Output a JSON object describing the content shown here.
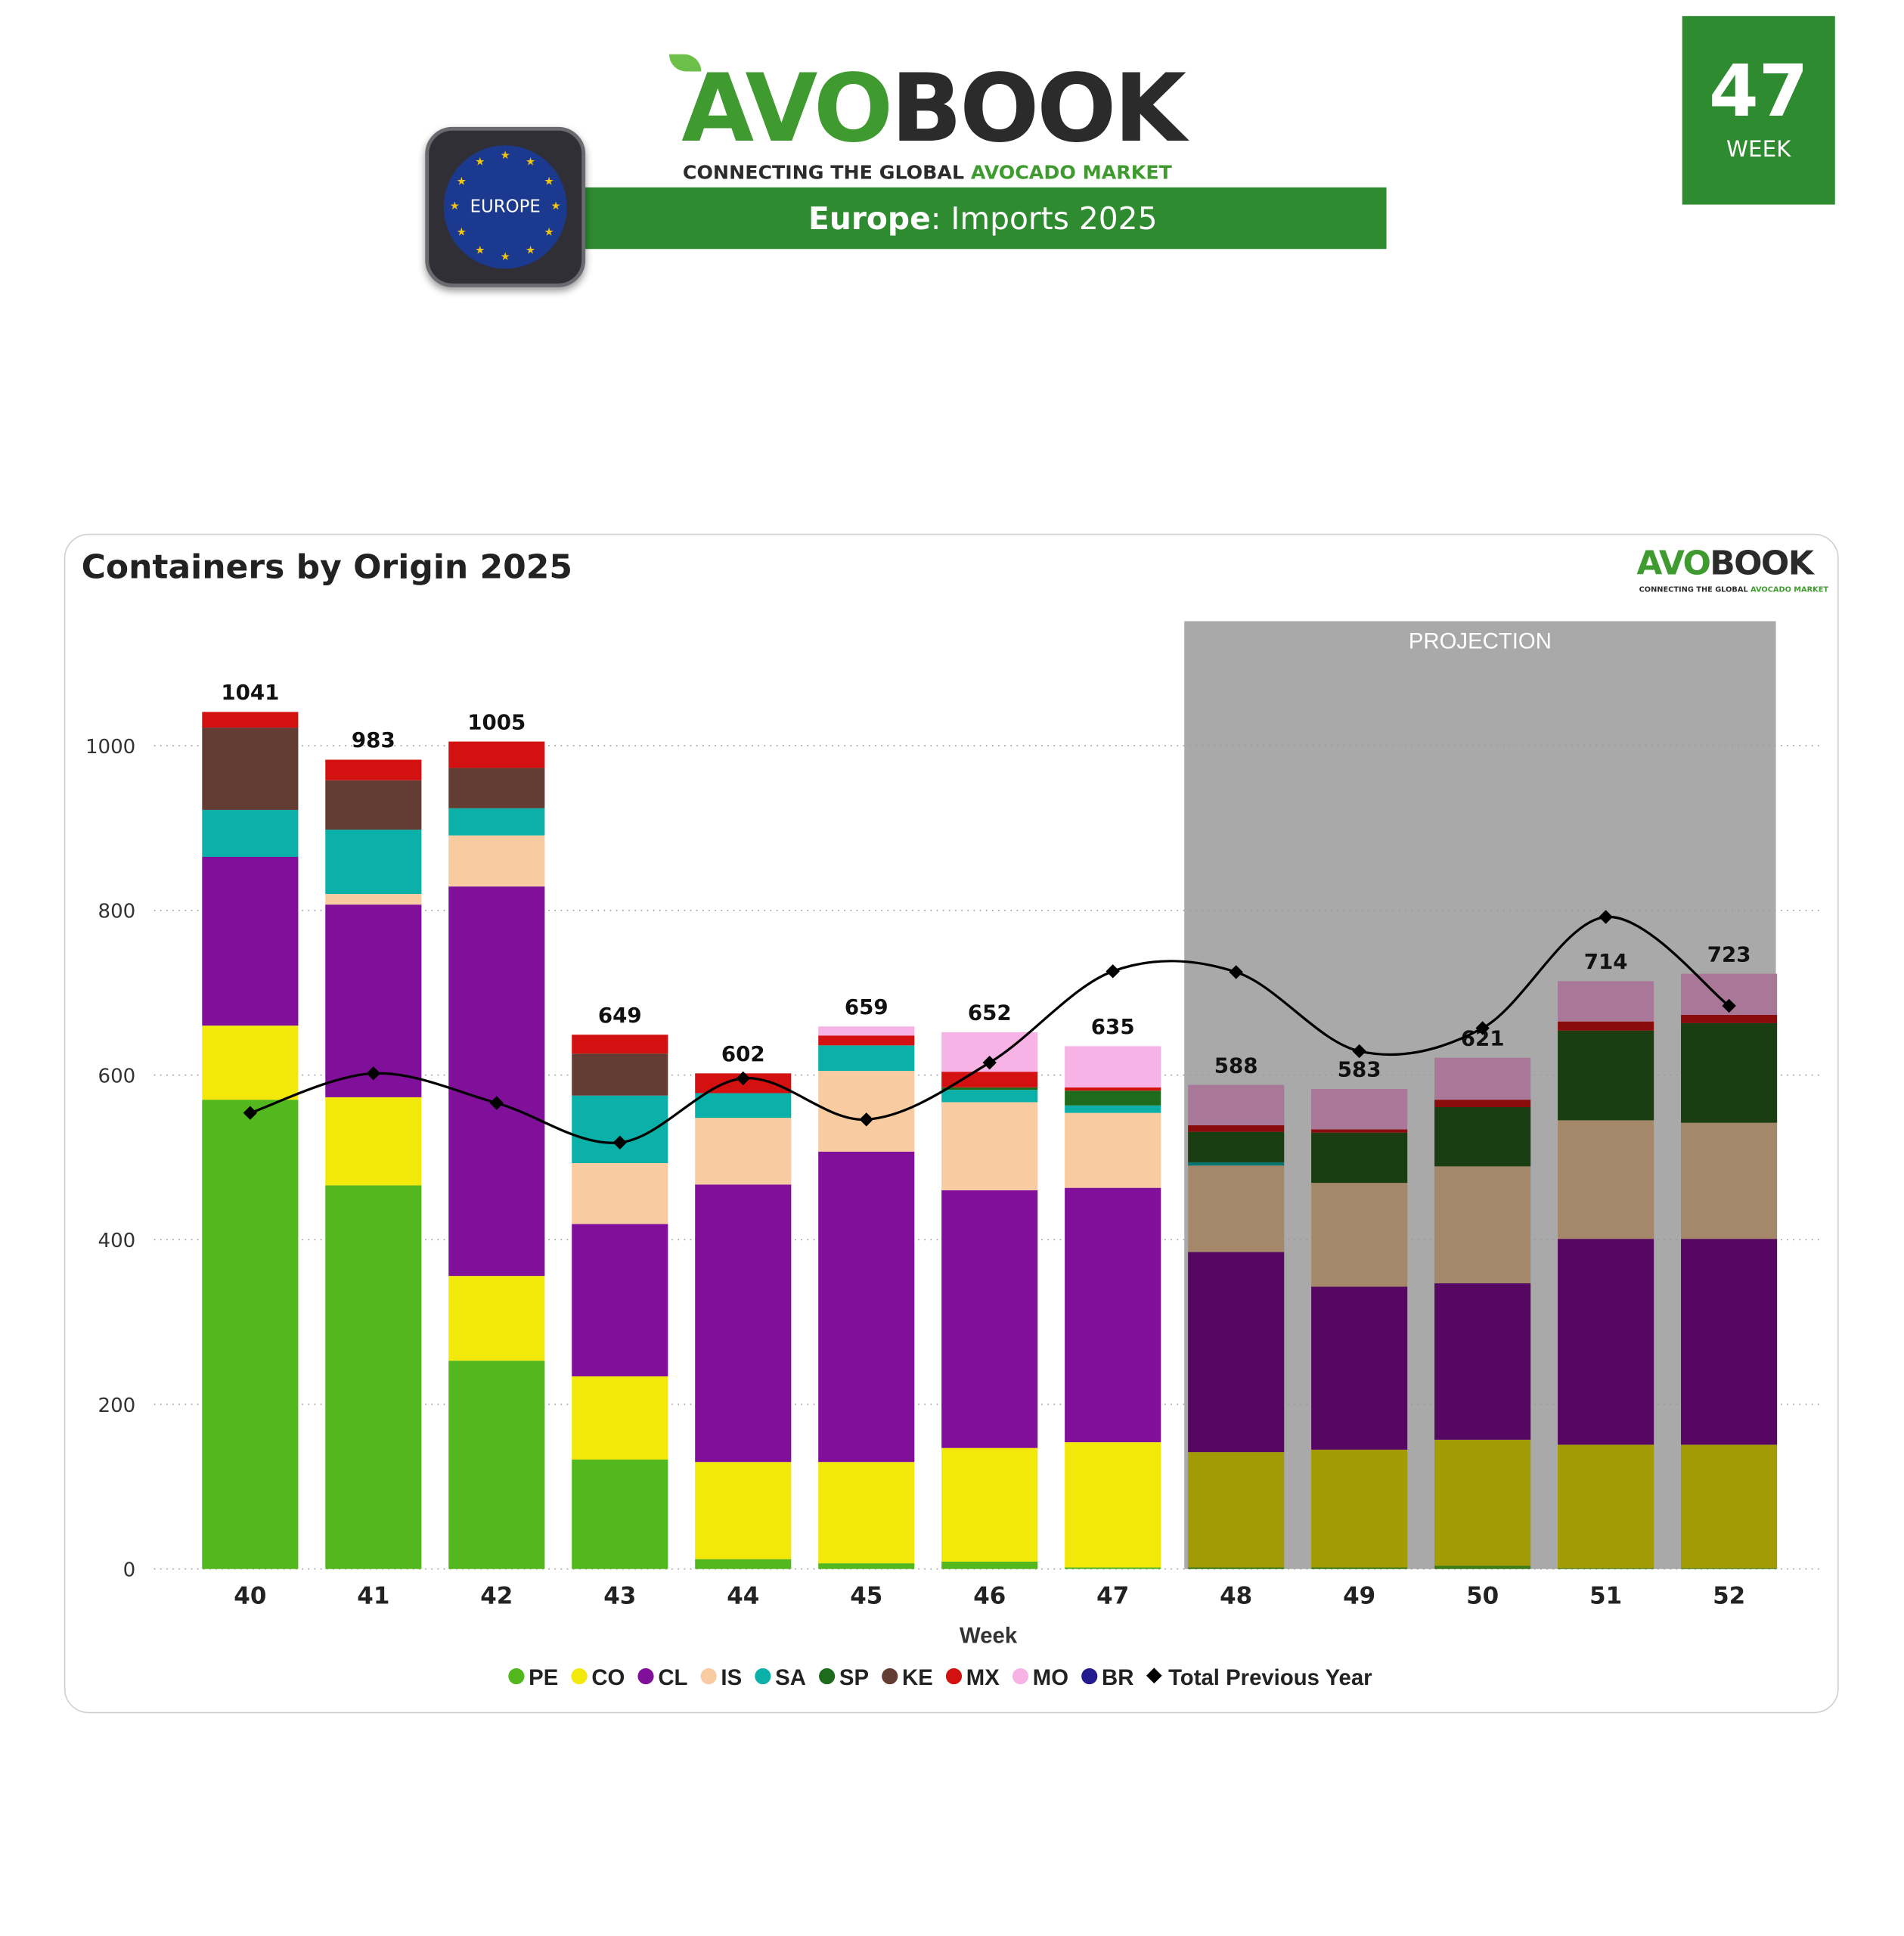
{
  "header": {
    "logo_avo": "AVO",
    "logo_book": "BOOK",
    "tagline_prefix": "CONNECTING THE GLOBAL ",
    "tagline_highlight": "AVOCADO MARKET",
    "banner_bold": "Europe",
    "banner_rest": ": Imports 2025",
    "region_badge": "EUROPE",
    "week_number": "47",
    "week_label": "WEEK"
  },
  "colors": {
    "brand_green": "#2e8b30"
  },
  "chart_data": {
    "type": "bar",
    "stacked": true,
    "title": "Containers by Origin 2025",
    "xlabel": "Week",
    "ylabel": "",
    "ylim": [
      0,
      1100
    ],
    "yticks": [
      0,
      200,
      400,
      600,
      800,
      1000
    ],
    "grid": true,
    "legend_position": "bottom",
    "projection_label": "PROJECTION",
    "projection_categories": [
      "48",
      "49",
      "50",
      "51",
      "52"
    ],
    "categories": [
      "40",
      "41",
      "42",
      "43",
      "44",
      "45",
      "46",
      "47",
      "48",
      "49",
      "50",
      "51",
      "52"
    ],
    "totals": [
      1041,
      983,
      1005,
      649,
      602,
      659,
      652,
      635,
      588,
      583,
      621,
      714,
      723
    ],
    "series": [
      {
        "name": "PE",
        "color": "#52b81e",
        "proj_color": "#3d7d18",
        "values": [
          570,
          466,
          253,
          133,
          12,
          7,
          9,
          2,
          2,
          2,
          4,
          1,
          1
        ]
      },
      {
        "name": "CO",
        "color": "#f2e80a",
        "proj_color": "#a39b05",
        "values": [
          90,
          107,
          103,
          101,
          118,
          123,
          138,
          152,
          140,
          143,
          153,
          150,
          150
        ]
      },
      {
        "name": "CL",
        "color": "#800f9a",
        "proj_color": "#560762",
        "values": [
          205,
          234,
          473,
          185,
          337,
          377,
          313,
          309,
          243,
          198,
          190,
          250,
          250
        ]
      },
      {
        "name": "IS",
        "color": "#f8cba0",
        "proj_color": "#a5886a",
        "values": [
          0,
          13,
          62,
          74,
          81,
          98,
          107,
          91,
          105,
          126,
          142,
          144,
          141
        ]
      },
      {
        "name": "SA",
        "color": "#0bb0a8",
        "proj_color": "#087570",
        "values": [
          57,
          78,
          33,
          82,
          30,
          31,
          15,
          9,
          4,
          0,
          0,
          0,
          0
        ]
      },
      {
        "name": "SP",
        "color": "#1e6b1e",
        "proj_color": "#1a3d12",
        "values": [
          0,
          0,
          0,
          0,
          0,
          0,
          3,
          18,
          37,
          61,
          72,
          109,
          121
        ]
      },
      {
        "name": "KE",
        "color": "#633c33",
        "proj_color": "#432822",
        "values": [
          100,
          60,
          49,
          51,
          0,
          0,
          0,
          0,
          0,
          0,
          0,
          0,
          0
        ]
      },
      {
        "name": "MX",
        "color": "#d41111",
        "proj_color": "#8a0b0b",
        "values": [
          19,
          25,
          32,
          23,
          24,
          12,
          19,
          4,
          8,
          4,
          9,
          11,
          10
        ]
      },
      {
        "name": "MO",
        "color": "#f7b3e6",
        "proj_color": "#a97899",
        "values": [
          0,
          0,
          0,
          0,
          0,
          11,
          48,
          50,
          49,
          49,
          51,
          49,
          50
        ]
      },
      {
        "name": "BR",
        "color": "#231a8f",
        "proj_color": "#17115f",
        "values": [
          0,
          0,
          0,
          0,
          0,
          0,
          0,
          0,
          0,
          0,
          0,
          0,
          0
        ]
      }
    ],
    "line": {
      "name": "Total Previous Year",
      "color": "#000000",
      "values": [
        554,
        602,
        566,
        518,
        596,
        546,
        615,
        726,
        725,
        629,
        657,
        792,
        684
      ]
    }
  }
}
